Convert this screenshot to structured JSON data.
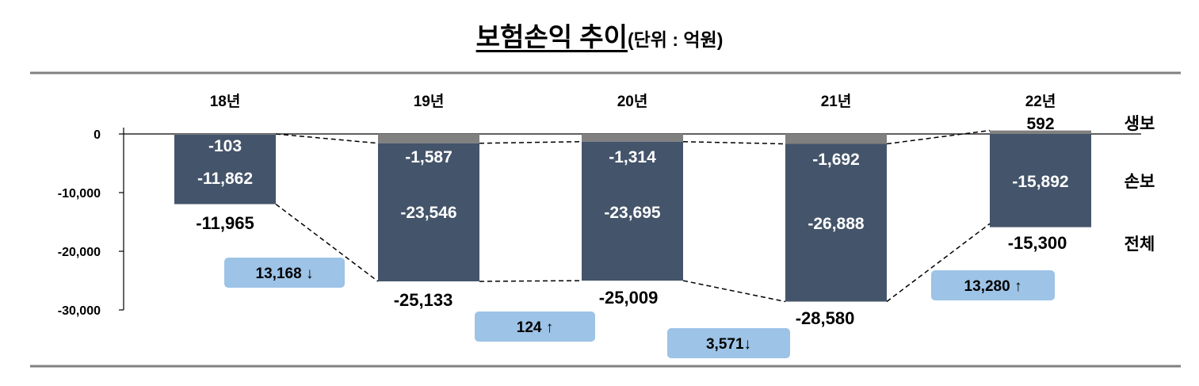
{
  "title": "보험손익 추이",
  "unit": "(단위 : 억원)",
  "chart_data": {
    "type": "bar",
    "stacked": true,
    "categories": [
      "18년",
      "19년",
      "20년",
      "21년",
      "22년"
    ],
    "series": [
      {
        "name": "생보",
        "values": [
          -103,
          -1587,
          -1314,
          -1692,
          592
        ],
        "color": "#808080"
      },
      {
        "name": "손보",
        "values": [
          -11862,
          -23546,
          -23695,
          -26888,
          -15892
        ],
        "color": "#44546A"
      }
    ],
    "totals": {
      "name": "전체",
      "values": [
        -11965,
        -25133,
        -25009,
        -28580,
        -15300
      ]
    },
    "labels": {
      "life": [
        "-103",
        "-1,587",
        "-1,314",
        "-1,692",
        "592"
      ],
      "nonlife": [
        "-11,862",
        "-23,546",
        "-23,695",
        "-26,888",
        "-15,892"
      ],
      "total": [
        "-11,965",
        "-25,133",
        "-25,009",
        "-28,580",
        "-15,300"
      ]
    },
    "changes": [
      "13,168 ↓",
      "124 ↑",
      "3,571↓",
      "13,280 ↑"
    ],
    "ylim": [
      -30000,
      0
    ],
    "yticks": [
      0,
      -10000,
      -20000,
      -30000
    ],
    "ytick_labels": [
      "0",
      "-10,000",
      "-20,000",
      "-30,000"
    ],
    "legend_position": "right",
    "change_box_color": "#9DC3E6"
  }
}
